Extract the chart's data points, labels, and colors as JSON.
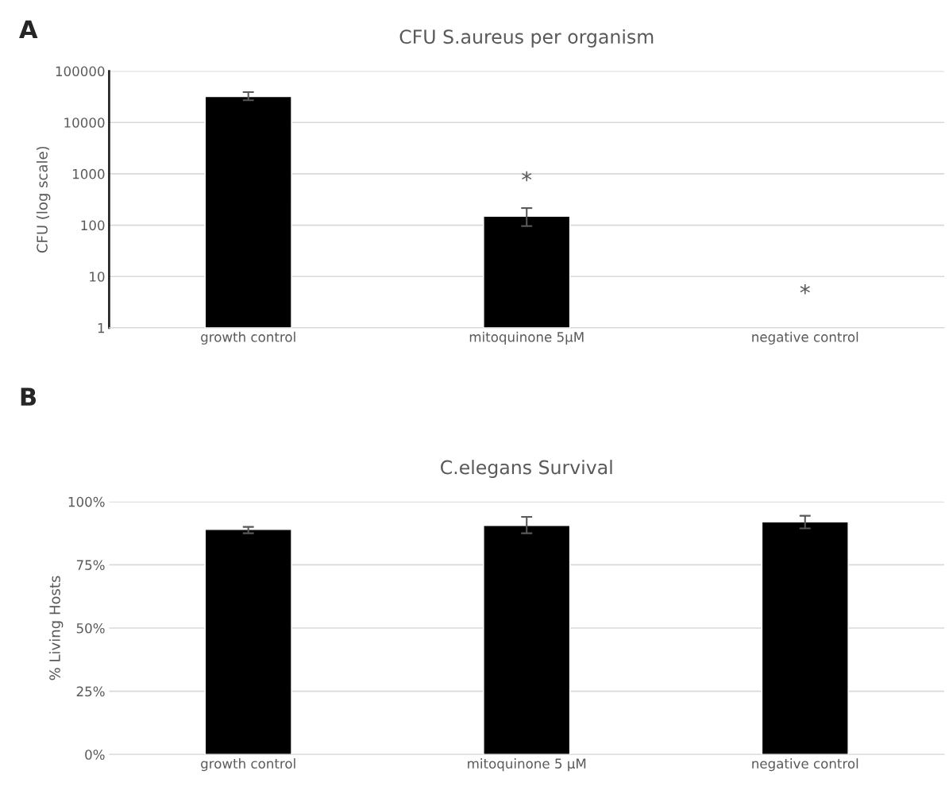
{
  "chart_data": [
    {
      "type": "bar",
      "title": "CFU S.aureus per organism",
      "ylabel": "CFU (log scale)",
      "categories": [
        "growth control",
        "mitoquinone 5µM",
        "negative control"
      ],
      "values": [
        32000,
        150,
        null
      ],
      "errors": [
        [
          27000,
          39000
        ],
        [
          96,
          215
        ],
        null
      ],
      "color": "#000000",
      "log": "y",
      "ylim": [
        1,
        100000
      ],
      "yticks": [
        1,
        10,
        100,
        1000,
        10000,
        100000
      ],
      "grid": "y",
      "annotations": [
        "A",
        "*",
        "*"
      ]
    },
    {
      "type": "bar",
      "title": "C.elegans Survival",
      "ylabel": "% Living Hosts",
      "categories": [
        "growth control",
        "mitoquinone 5 µM",
        "negative control"
      ],
      "values": [
        89,
        90.6,
        92
      ],
      "errors": [
        [
          87.5,
          90
        ],
        [
          87.5,
          94
        ],
        [
          89.4,
          94.4
        ]
      ],
      "color": "#000000",
      "ylim": [
        0,
        100
      ],
      "yticks": [
        {
          "value": 0,
          "label": "0%"
        },
        {
          "value": 25,
          "label": "25%"
        },
        {
          "value": 50,
          "label": "50%"
        },
        {
          "value": 75,
          "label": "75%"
        },
        {
          "value": 100,
          "label": "100%"
        }
      ],
      "grid": "y",
      "annotations": [
        "B"
      ]
    }
  ]
}
